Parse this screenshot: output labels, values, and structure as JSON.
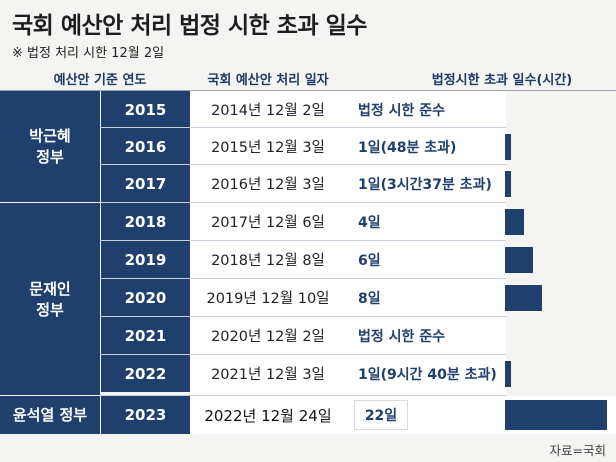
{
  "title": "국회 예산안 처리 법정 시한 초과 일수",
  "subtitle": "※ 법정 처리 시한 12월 2일",
  "headers": {
    "year": "예산안 기준 연도",
    "date": "국회 예산안 처리 일자",
    "overrun": "법정시한 초과 일수(시간)"
  },
  "governments": [
    {
      "line1": "박근혜",
      "line2": "정부"
    },
    {
      "line1": "문재인",
      "line2": "정부"
    },
    {
      "line1": "윤석열 정부",
      "line2": ""
    }
  ],
  "rows": [
    {
      "year": "2015",
      "date": "2014년 12월 2일",
      "overrun": "법정 시한 준수"
    },
    {
      "year": "2016",
      "date": "2015년 12월 3일",
      "overrun": "1일(48분 초과)"
    },
    {
      "year": "2017",
      "date": "2016년 12월 3일",
      "overrun": "1일(3시간37분 초과)"
    },
    {
      "year": "2018",
      "date": "2017년 12월 6일",
      "overrun": "4일"
    },
    {
      "year": "2019",
      "date": "2018년 12월 8일",
      "overrun": "6일"
    },
    {
      "year": "2020",
      "date": "2019년 12월 10일",
      "overrun": "8일"
    },
    {
      "year": "2021",
      "date": "2020년 12월 2일",
      "overrun": "법정 시한 준수"
    },
    {
      "year": "2022",
      "date": "2021년 12월 3일",
      "overrun": "1일(9시간 40분 초과)"
    },
    {
      "year": "2023",
      "date": "2022년 12월 24일",
      "overrun": "22일"
    }
  ],
  "source": "자료=국회",
  "colors": {
    "navy": "#1f3f6c",
    "background": "#f4f4f2"
  },
  "chart_data": {
    "type": "bar",
    "orientation": "horizontal",
    "categories": [
      "2015",
      "2016",
      "2017",
      "2018",
      "2019",
      "2020",
      "2021",
      "2022",
      "2023"
    ],
    "values": [
      0,
      1,
      1,
      4,
      6,
      8,
      0,
      1,
      22
    ],
    "title": "국회 예산안 처리 법정 시한 초과 일수",
    "subtitle": "※ 법정 처리 시한 12월 2일",
    "xlabel": "",
    "ylabel": "예산안 기준 연도",
    "unit": "일",
    "grid": false,
    "legend": "none"
  }
}
